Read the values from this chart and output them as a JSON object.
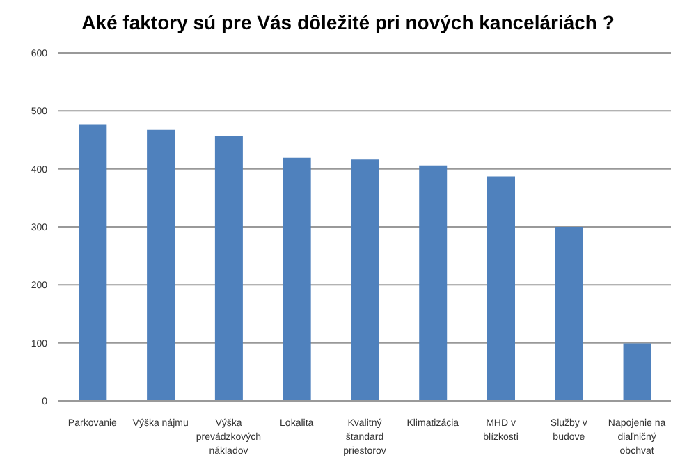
{
  "chart_data": {
    "type": "bar",
    "title": "Aké faktory sú pre Vás dôležité pri nových kanceláriách ?",
    "categories": [
      "Parkovanie",
      "Výška nájmu",
      "Výška prevádzkových nákladov",
      "Lokalita",
      "Kvalitný štandard priestorov",
      "Klimatizácia",
      "MHD v blízkosti",
      "Služby v budove",
      "Napojenie na diaľničný obchvat"
    ],
    "values": [
      477,
      467,
      456,
      419,
      416,
      406,
      387,
      300,
      99
    ],
    "color": "#4f81bd",
    "ylim": [
      0,
      600
    ],
    "yticks": [
      0,
      100,
      200,
      300,
      400,
      500,
      600
    ],
    "grid": "y"
  }
}
